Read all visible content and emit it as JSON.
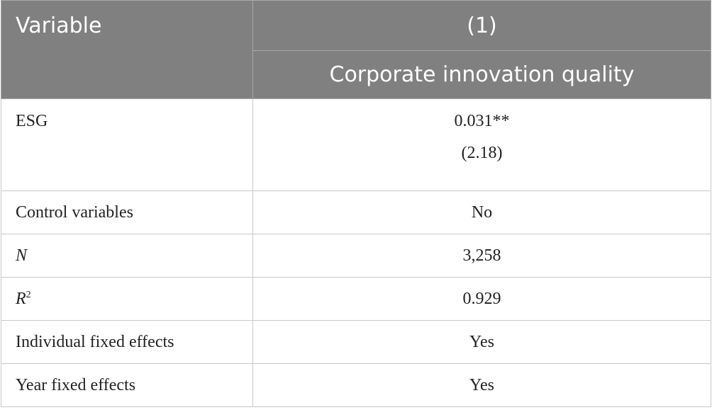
{
  "table": {
    "header": {
      "variable": "Variable",
      "column_number": "(1)",
      "column_label": "Corporate innovation quality"
    },
    "rows": [
      {
        "variable": "ESG",
        "value": "0.031**",
        "t_stat": "(2.18)"
      },
      {
        "variable": "Control variables",
        "value": "No"
      },
      {
        "variable": "N",
        "value": "3,258"
      },
      {
        "variable": {
          "base": "R",
          "sup": "2"
        },
        "value": "0.929"
      },
      {
        "variable": "Individual fixed effects",
        "value": "Yes"
      },
      {
        "variable": "Year fixed effects",
        "value": "Yes"
      }
    ]
  }
}
